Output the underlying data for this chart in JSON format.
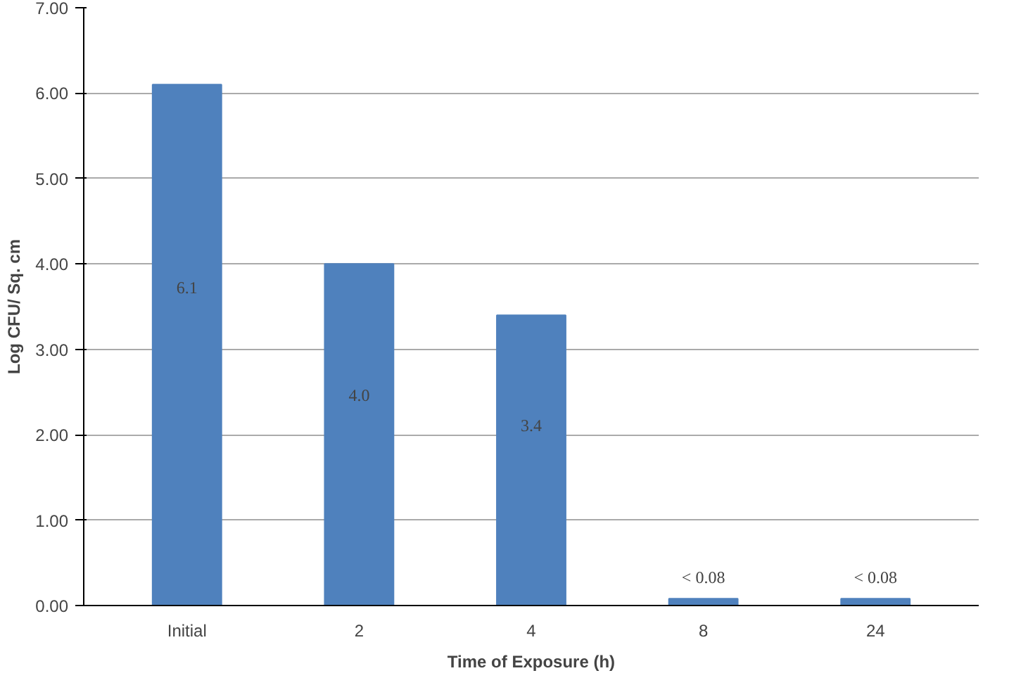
{
  "chart_data": {
    "type": "bar",
    "xlabel": "Time of Exposure (h)",
    "ylabel": "Log CFU/ Sq. cm",
    "categories": [
      "Initial",
      "2",
      "4",
      "8",
      "24"
    ],
    "values": [
      6.1,
      4.0,
      3.4,
      0.08,
      0.08
    ],
    "value_labels": [
      "6.1",
      "4.0",
      "3.4",
      "< 0.08",
      "< 0.08"
    ],
    "color": "#4f81bd",
    "ylim": [
      0,
      7
    ],
    "yticks": [
      {
        "value": 0,
        "label": "0.00"
      },
      {
        "value": 1,
        "label": "1.00"
      },
      {
        "value": 2,
        "label": "2.00"
      },
      {
        "value": 3,
        "label": "3.00"
      },
      {
        "value": 4,
        "label": "4.00"
      },
      {
        "value": 5,
        "label": "5.00"
      },
      {
        "value": 6,
        "label": "6.00"
      },
      {
        "value": 7,
        "label": "7.00"
      }
    ],
    "grid": "y"
  }
}
